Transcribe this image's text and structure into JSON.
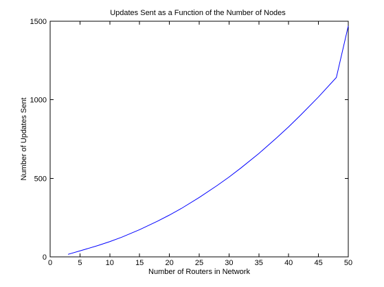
{
  "chart_data": {
    "type": "line",
    "title": "Updates Sent as a Function of the Number of Nodes",
    "xlabel": "Number of Routers in Network",
    "ylabel": "Number of Updates Sent",
    "xlim": [
      0,
      50
    ],
    "ylim": [
      0,
      1500
    ],
    "xticks": [
      0,
      5,
      10,
      15,
      20,
      25,
      30,
      35,
      40,
      45,
      50
    ],
    "yticks": [
      0,
      500,
      1000,
      1500
    ],
    "grid": false,
    "box": true,
    "series": [
      {
        "color": "#0000ff",
        "x": [
          3,
          5,
          8,
          10,
          12,
          15,
          18,
          20,
          22,
          25,
          28,
          30,
          32,
          35,
          38,
          40,
          42,
          45,
          48,
          50
        ],
        "y": [
          16,
          38,
          72,
          97,
          125,
          173,
          227,
          266,
          308,
          378,
          454,
          508,
          566,
          658,
          758,
          828,
          902,
          1018,
          1142,
          1470
        ]
      }
    ]
  }
}
